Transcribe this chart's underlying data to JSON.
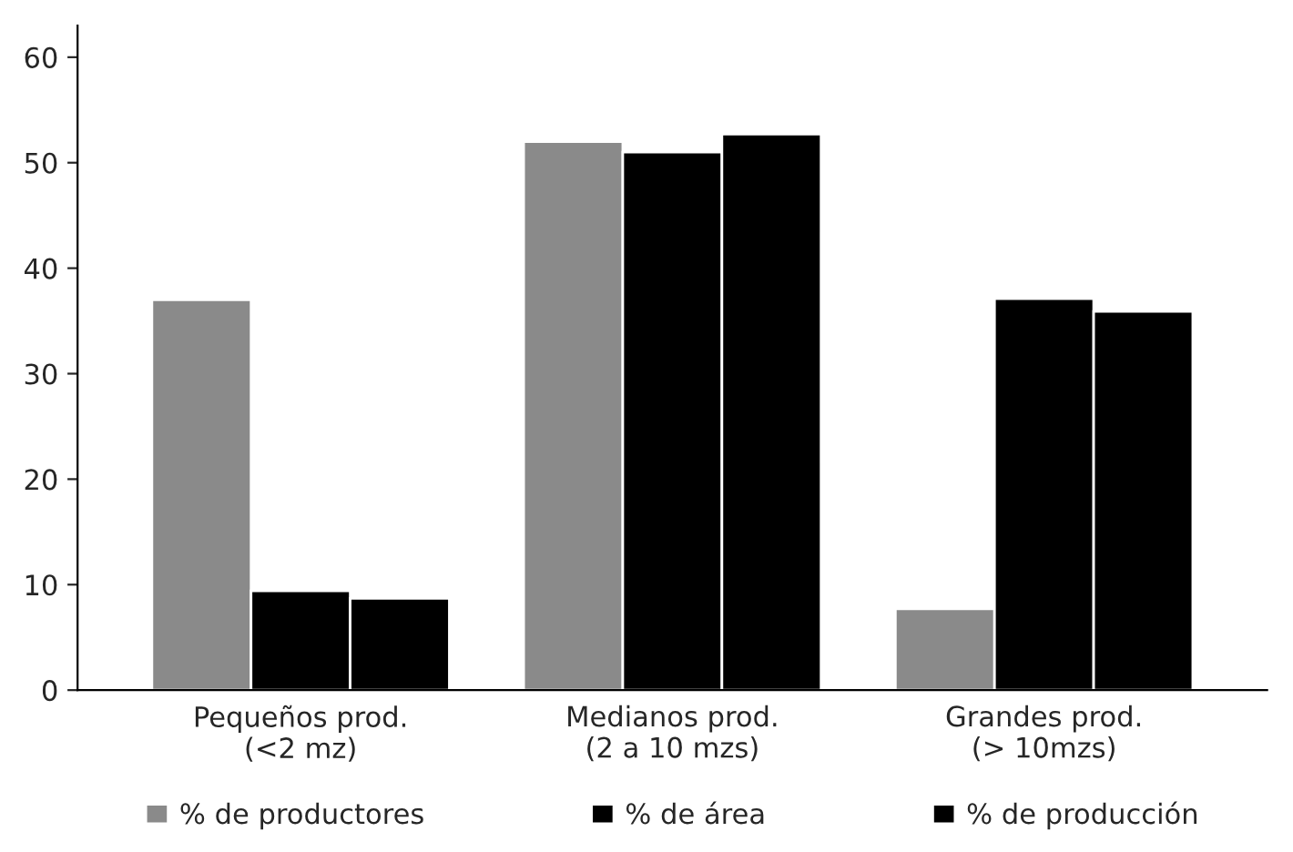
{
  "chart_data": {
    "type": "bar",
    "categories": [
      "Pequeños prod.\n(<2 mz)",
      "Medianos prod.\n(2 a 10 mzs)",
      "Grandes prod.\n(> 10mzs)"
    ],
    "series": [
      {
        "name": "% de productores",
        "color": "#8a8a8a",
        "values": [
          37,
          52,
          7.7
        ]
      },
      {
        "name": "% de área",
        "color": "#000000",
        "values": [
          9.4,
          51,
          37.1
        ]
      },
      {
        "name": "% de producción",
        "color": "#000000",
        "values": [
          8.7,
          52.7,
          35.9
        ]
      }
    ],
    "ylim": [
      0,
      63
    ],
    "yticks": [
      0,
      10,
      20,
      30,
      40,
      50,
      60
    ],
    "grid": false,
    "legend": "bottom"
  }
}
